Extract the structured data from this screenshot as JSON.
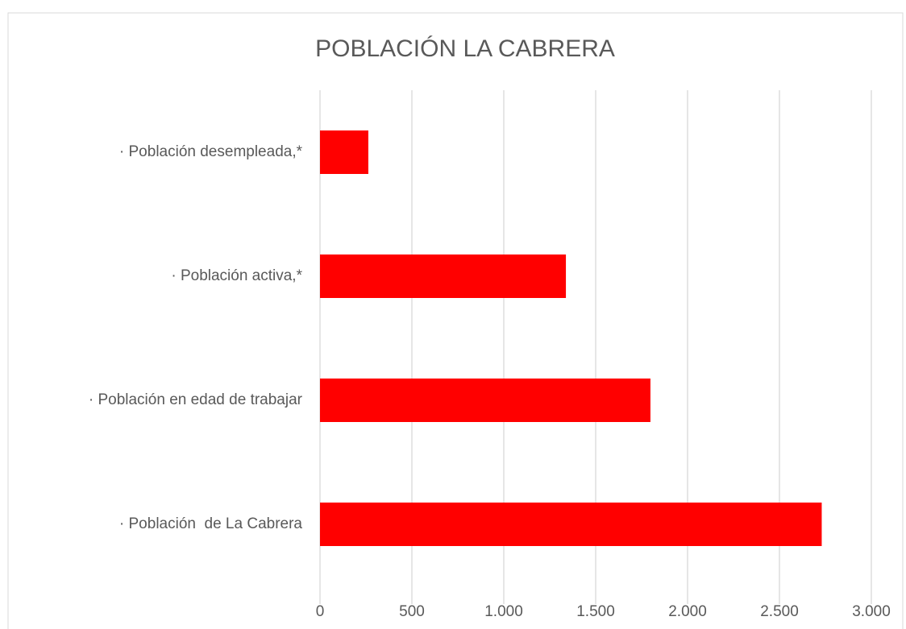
{
  "chart_data": {
    "type": "bar",
    "orientation": "horizontal",
    "title": "POBLACIÓN LA CABRERA",
    "categories": [
      "· Población desempleada,*",
      "· Población activa,*",
      "· Población en edad de trabajar",
      "· Población  de La Cabrera"
    ],
    "values": [
      263,
      1338,
      1798,
      2730
    ],
    "color": "#ff0000",
    "xlim": [
      0,
      3000
    ],
    "xticks": [
      0,
      500,
      {
        "value": 1000,
        "label": "1.000"
      },
      {
        "value": 1500,
        "label": "1.500"
      },
      {
        "value": 2000,
        "label": "2.000"
      },
      {
        "value": 2500,
        "label": "2.500"
      },
      {
        "value": 3000,
        "label": "3.000"
      }
    ],
    "grid": true
  }
}
